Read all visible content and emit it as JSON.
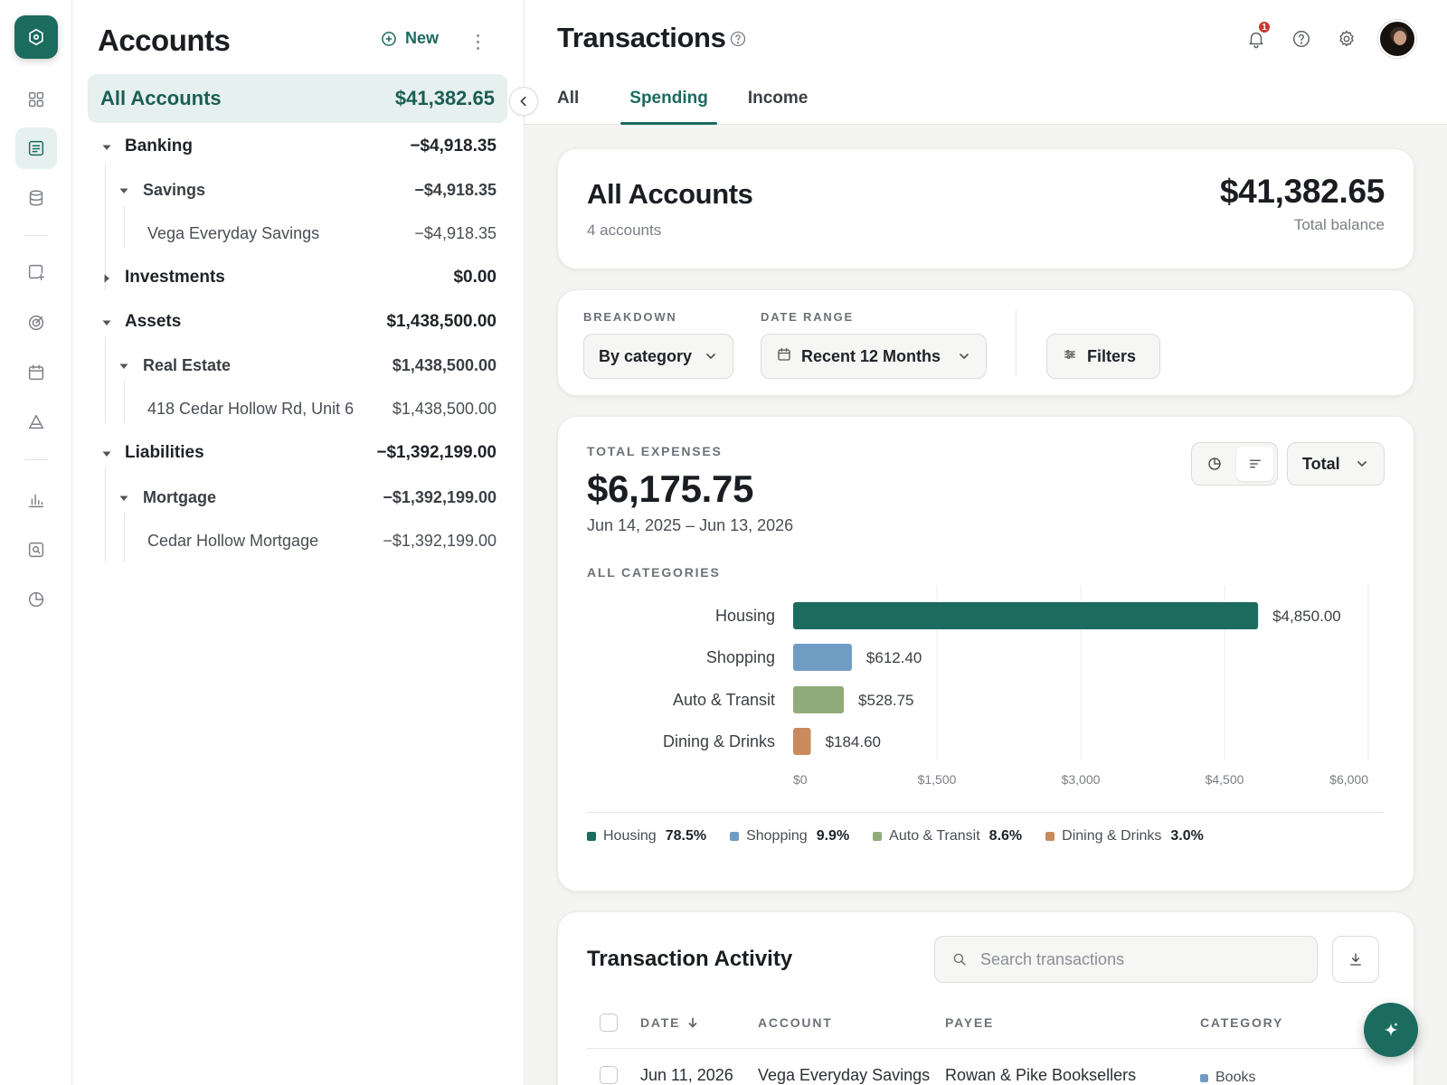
{
  "rail": {
    "logo_icon": "shield-hexagon-icon",
    "items": [
      {
        "icon": "grid-icon",
        "active": false
      },
      {
        "icon": "ledger-icon",
        "active": true
      },
      {
        "icon": "database-icon",
        "active": false
      },
      {
        "icon": "add-document-icon",
        "active": false
      },
      {
        "icon": "target-icon",
        "active": false
      },
      {
        "icon": "calendar-icon",
        "active": false
      },
      {
        "icon": "triangle-icon",
        "active": false
      },
      {
        "icon": "bar-chart-icon",
        "active": false
      },
      {
        "icon": "search-report-icon",
        "active": false
      },
      {
        "icon": "pie-clock-icon",
        "active": false
      }
    ]
  },
  "accounts": {
    "title": "Accounts",
    "new_label": "New",
    "all_accounts": {
      "label": "All Accounts",
      "amount": "$41,382.65"
    },
    "tree": [
      {
        "label": "Banking",
        "amount": "−$4,918.35",
        "level": 0,
        "expanded": true
      },
      {
        "label": "Savings",
        "amount": "−$4,918.35",
        "level": 1,
        "expanded": true
      },
      {
        "label": "Vega Everyday Savings",
        "amount": "−$4,918.35",
        "level": 2
      },
      {
        "label": "Investments",
        "amount": "$0.00",
        "level": 0,
        "expanded": false
      },
      {
        "label": "Assets",
        "amount": "$1,438,500.00",
        "level": 0,
        "expanded": true
      },
      {
        "label": "Real Estate",
        "amount": "$1,438,500.00",
        "level": 1,
        "expanded": true
      },
      {
        "label": "418 Cedar Hollow Rd, Unit 6",
        "amount": "$1,438,500.00",
        "level": 2
      },
      {
        "label": "Liabilities",
        "amount": "−$1,392,199.00",
        "level": 0,
        "expanded": true
      },
      {
        "label": "Mortgage",
        "amount": "−$1,392,199.00",
        "level": 1,
        "expanded": true
      },
      {
        "label": "Cedar Hollow Mortgage",
        "amount": "−$1,392,199.00",
        "level": 2
      }
    ]
  },
  "header": {
    "title": "Transactions",
    "notification_count": "1",
    "tabs": [
      {
        "label": "All",
        "active": false
      },
      {
        "label": "Spending",
        "active": true
      },
      {
        "label": "Income",
        "active": false
      }
    ]
  },
  "summary": {
    "title": "All Accounts",
    "subtitle": "4 accounts",
    "amount": "$41,382.65",
    "amount_label": "Total balance"
  },
  "controls": {
    "breakdown_label": "BREAKDOWN",
    "breakdown_value": "By category",
    "date_range_label": "DATE RANGE",
    "date_range_value": "Recent 12 Months",
    "filters_label": "Filters"
  },
  "expenses": {
    "label": "TOTAL EXPENSES",
    "amount": "$6,175.75",
    "date_range": "Jun 14, 2025 – Jun 13, 2026",
    "categories_label": "ALL CATEGORIES",
    "total_selector": "Total"
  },
  "chart_data": {
    "type": "bar",
    "orientation": "horizontal",
    "categories": [
      "Housing",
      "Shopping",
      "Auto & Transit",
      "Dining & Drinks"
    ],
    "values": [
      4850.0,
      612.4,
      528.75,
      184.6
    ],
    "value_labels": [
      "$4,850.00",
      "$612.40",
      "$528.75",
      "$184.60"
    ],
    "colors": [
      "#1b6b5e",
      "#6f9cc3",
      "#8fac7a",
      "#c98b5e"
    ],
    "xlim": [
      0,
      6000
    ],
    "x_ticks": [
      0,
      1500,
      3000,
      4500,
      6000
    ],
    "x_tick_labels": [
      "$0",
      "$1,500",
      "$3,000",
      "$4,500",
      "$6,000"
    ],
    "grid": true,
    "legend": [
      {
        "name": "Housing",
        "pct": "78.5%",
        "color": "#1b6b5e"
      },
      {
        "name": "Shopping",
        "pct": "9.9%",
        "color": "#6f9cc3"
      },
      {
        "name": "Auto & Transit",
        "pct": "8.6%",
        "color": "#8fac7a"
      },
      {
        "name": "Dining & Drinks",
        "pct": "3.0%",
        "color": "#c98b5e"
      }
    ]
  },
  "activity": {
    "title": "Transaction Activity",
    "search_placeholder": "Search transactions",
    "columns": [
      "DATE",
      "ACCOUNT",
      "PAYEE",
      "CATEGORY"
    ],
    "rows": [
      {
        "date": "Jun 11, 2026",
        "account": "Vega Everyday Savings",
        "payee": "Rowan & Pike Booksellers",
        "category": "Books",
        "category_color": "#6f9cc3"
      }
    ]
  },
  "colors": {
    "accent": "#1b6b5e",
    "accent_light": "#e6f0ee"
  }
}
